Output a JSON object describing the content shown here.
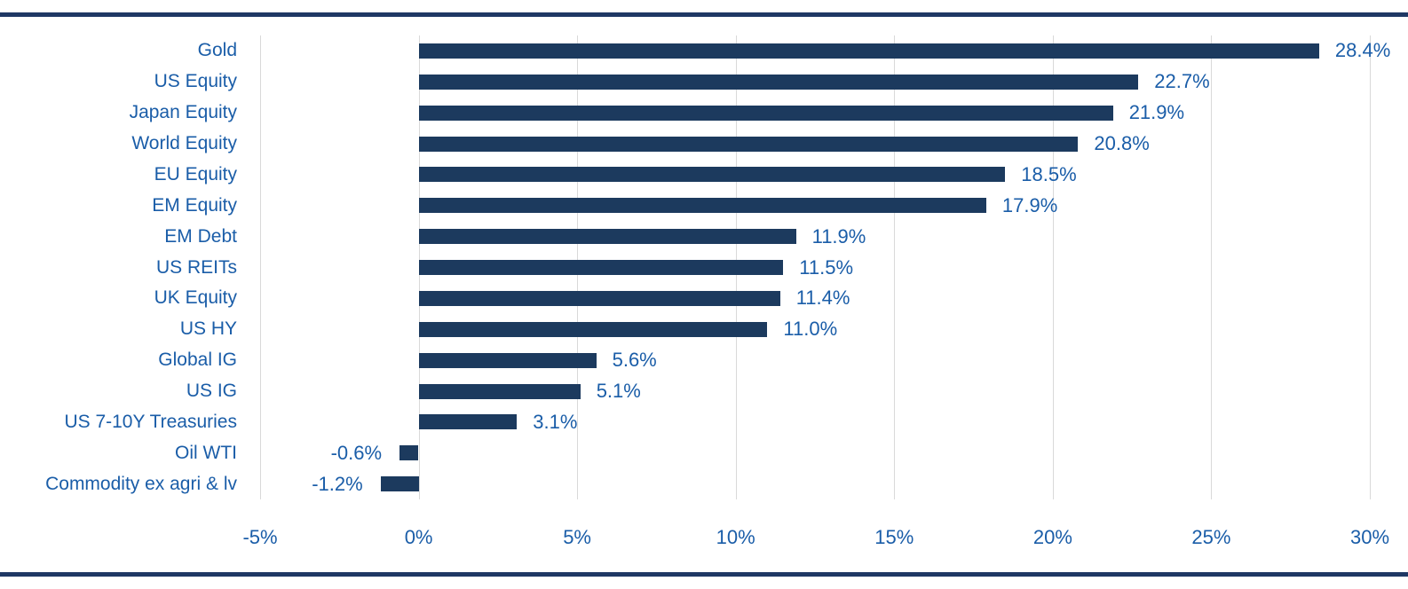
{
  "chart_data": {
    "type": "bar",
    "orientation": "horizontal",
    "title": "",
    "categories": [
      "Gold",
      "US Equity",
      "Japan Equity",
      "World Equity",
      "EU Equity",
      "EM Equity",
      "EM Debt",
      "US REITs",
      "UK Equity",
      "US HY",
      "Global IG",
      "US IG",
      "US 7-10Y Treasuries",
      "Oil WTI",
      "Commodity ex agri & lv"
    ],
    "values": [
      28.4,
      22.7,
      21.9,
      20.8,
      18.5,
      17.9,
      11.9,
      11.5,
      11.4,
      11.0,
      5.6,
      5.1,
      3.1,
      -0.6,
      -1.2
    ],
    "value_labels": [
      "28.4%",
      "22.7%",
      "21.9%",
      "20.8%",
      "18.5%",
      "17.9%",
      "11.9%",
      "11.5%",
      "11.4%",
      "11.0%",
      "5.6%",
      "5.1%",
      "3.1%",
      "-0.6%",
      "-1.2%"
    ],
    "xlim": [
      -5,
      30
    ],
    "x_ticks": [
      -5,
      0,
      5,
      10,
      15,
      20,
      25,
      30
    ],
    "x_tick_labels": [
      "-5%",
      "0%",
      "5%",
      "10%",
      "15%",
      "20%",
      "25%",
      "30%"
    ],
    "grid": "vertical-gridlines-on",
    "legend": null,
    "colors": {
      "bar": "#1C3A5E",
      "text_blue": "#1A5DA8",
      "gridline": "#D9D9D9",
      "rule": "#1F3864",
      "background": "#FFFFFF"
    }
  }
}
